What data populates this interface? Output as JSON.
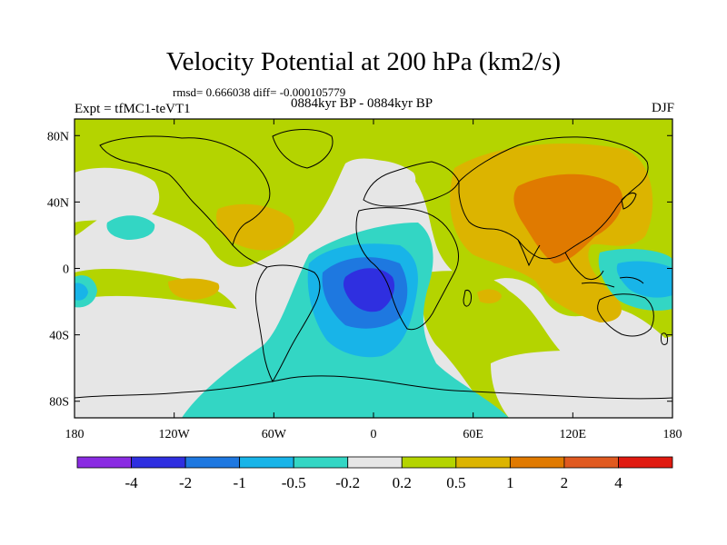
{
  "title": "Velocity Potential at 200 hPa (km2/s)",
  "stats": "rmsd= 0.666038 diff= -0.000105779",
  "period": "0884kyr BP - 0884kyr BP",
  "experiment": "Expt = tfMC1-teVT1",
  "season": "DJF",
  "axes": {
    "x_ticks": [
      {
        "lon": -180,
        "label": "180"
      },
      {
        "lon": -120,
        "label": "120W"
      },
      {
        "lon": -60,
        "label": "60W"
      },
      {
        "lon": 0,
        "label": "0"
      },
      {
        "lon": 60,
        "label": "60E"
      },
      {
        "lon": 120,
        "label": "120E"
      },
      {
        "lon": 180,
        "label": "180"
      }
    ],
    "y_ticks": [
      {
        "lat": 80,
        "label": "80N"
      },
      {
        "lat": 40,
        "label": "40N"
      },
      {
        "lat": 0,
        "label": "0"
      },
      {
        "lat": -40,
        "label": "40S"
      },
      {
        "lat": -80,
        "label": "80S"
      }
    ]
  },
  "colorbar": {
    "colors": [
      "#8a2be2",
      "#2f2fe0",
      "#1e78e0",
      "#18b4e8",
      "#33d6c4",
      "#e6e6e6",
      "#b4d400",
      "#dcb400",
      "#e07a00",
      "#e05a20",
      "#e01a10"
    ],
    "labels": [
      "-4",
      "-2",
      "-1",
      "-0.5",
      "-0.2",
      "0.2",
      "0.5",
      "1",
      "2",
      "4"
    ]
  },
  "colors": {
    "neg_strong": "#2f2fe0",
    "neg_mid": "#1e78e0",
    "neg_light": "#18b4e8",
    "neg_weak": "#33d6c4",
    "neutral": "#e6e6e6",
    "pos_weak": "#b4d400",
    "pos_light": "#dcb400",
    "pos_mid": "#e07a00"
  }
}
